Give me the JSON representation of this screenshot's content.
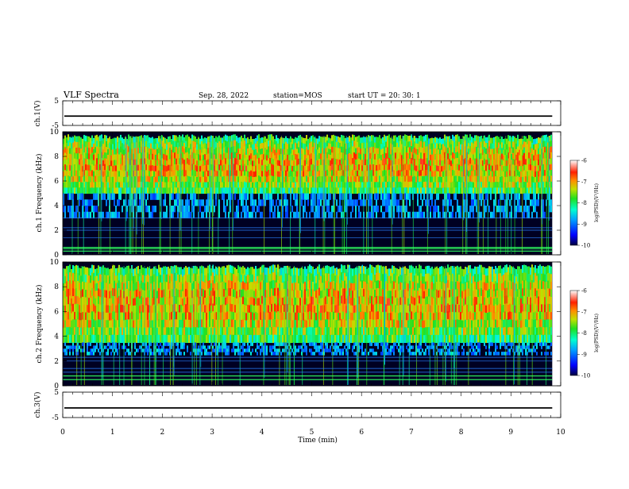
{
  "header": {
    "title": "VLF Spectra",
    "date": "Sep. 28, 2022",
    "station": "station=MOS",
    "start": "start  UT  =   20: 30: 1"
  },
  "chart_data": [
    {
      "type": "line",
      "name": "ch1-waveform",
      "ylabel": "ch.1(V)",
      "ylim": [
        -5,
        5
      ],
      "yticks": [
        5,
        -5
      ],
      "xlim": [
        0,
        10
      ],
      "level": -1.2
    },
    {
      "type": "heatmap",
      "name": "ch1-spectrogram",
      "ylabel": "ch.1 Frequency (kHz)",
      "ylim": [
        0,
        10
      ],
      "yticks": [
        0,
        2,
        4,
        6,
        8,
        10
      ],
      "xlim": [
        0,
        10
      ],
      "data_end_min": 9.83,
      "intense_band_khz": [
        5.0,
        9.8
      ],
      "weak_band_khz": [
        3.0,
        5.0
      ],
      "lines_khz": [
        0.3,
        0.5,
        0.6,
        1.4,
        2.0,
        2.2,
        3.0
      ],
      "colorbar": {
        "label": "log(PSD)(V²/Hz)",
        "range": [
          -10,
          -6
        ],
        "ticks": [
          "-6",
          "-7",
          "-8",
          "-9",
          "-10"
        ]
      }
    },
    {
      "type": "heatmap",
      "name": "ch2-spectrogram",
      "ylabel": "ch.2 Frequency (kHz)",
      "ylim": [
        0,
        10
      ],
      "yticks": [
        0,
        2,
        4,
        6,
        8,
        10
      ],
      "xlim": [
        0,
        10
      ],
      "data_end_min": 9.83,
      "intense_band_khz": [
        3.5,
        9.8
      ],
      "weak_band_khz": [
        2.5,
        3.5
      ],
      "lines_khz": [
        0.5,
        0.8,
        1.1,
        1.4,
        2.0,
        2.3
      ],
      "colorbar": {
        "label": "log(PSD)(V²/Hz)",
        "range": [
          -10,
          -6
        ],
        "ticks": [
          "-6",
          "-7",
          "-8",
          "-9",
          "-10"
        ]
      }
    },
    {
      "type": "line",
      "name": "ch3-waveform",
      "ylabel": "ch.3(V)",
      "ylim": [
        -5,
        5
      ],
      "yticks": [
        5,
        -5
      ],
      "xlim": [
        0,
        10
      ],
      "level": -1.2
    }
  ],
  "xaxis": {
    "label": "Time  (min)",
    "ticks": [
      "0",
      "1",
      "2",
      "3",
      "4",
      "5",
      "6",
      "7",
      "8",
      "9",
      "10"
    ]
  }
}
